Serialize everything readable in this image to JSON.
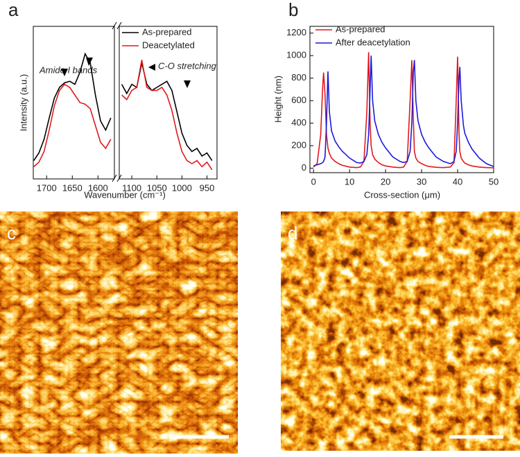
{
  "chart_data": [
    {
      "type": "line",
      "panel_label": "a",
      "x_label": "Wavenumber (cm⁻¹)",
      "y_label": "Intensity (a.u.)",
      "x": [
        1725,
        1715,
        1705,
        1695,
        1685,
        1675,
        1665,
        1655,
        1645,
        1635,
        1625,
        1615,
        1605,
        1595,
        1585,
        1575,
        1120,
        1110,
        1100,
        1090,
        1080,
        1070,
        1060,
        1050,
        1040,
        1030,
        1020,
        1010,
        1000,
        990,
        980,
        970,
        960,
        950,
        940
      ],
      "segments": [
        {
          "xlim": [
            1726,
            1568
          ],
          "xticks": [
            1700,
            1650,
            1600
          ]
        },
        {
          "xlim": [
            1125,
            930
          ],
          "xticks": [
            1100,
            1050,
            1000,
            950
          ]
        }
      ],
      "ylim": [
        0,
        1
      ],
      "series": [
        {
          "name": "As-prepared",
          "color": "#000000",
          "values": [
            0.12,
            0.17,
            0.26,
            0.4,
            0.53,
            0.6,
            0.63,
            0.64,
            0.62,
            0.7,
            0.82,
            0.76,
            0.55,
            0.38,
            0.32,
            0.4,
            0.62,
            0.56,
            0.62,
            0.6,
            0.76,
            0.62,
            0.58,
            0.6,
            0.62,
            0.64,
            0.58,
            0.44,
            0.3,
            0.22,
            0.18,
            0.2,
            0.15,
            0.17,
            0.12
          ]
        },
        {
          "name": "Deacetylated",
          "color": "#e0191b",
          "values": [
            0.08,
            0.11,
            0.18,
            0.32,
            0.48,
            0.58,
            0.62,
            0.6,
            0.55,
            0.5,
            0.49,
            0.46,
            0.35,
            0.24,
            0.2,
            0.26,
            0.55,
            0.52,
            0.58,
            0.6,
            0.78,
            0.6,
            0.58,
            0.58,
            0.6,
            0.55,
            0.45,
            0.3,
            0.18,
            0.12,
            0.1,
            0.12,
            0.08,
            0.11,
            0.06
          ]
        }
      ],
      "annotations": [
        "Amide I bands",
        "C-O stretching"
      ],
      "legend": "upper right"
    },
    {
      "type": "line",
      "panel_label": "b",
      "x_label": "Cross-section (μm)",
      "y_label": "Height (nm)",
      "x": [
        0,
        1,
        2,
        2.5,
        2.8,
        3.2,
        3.6,
        4,
        4.4,
        5,
        6,
        7,
        8,
        10,
        12,
        13,
        14,
        14.8,
        15.3,
        15.7,
        16,
        16.4,
        17,
        18,
        19,
        20,
        22,
        24,
        25,
        26,
        26.8,
        27.3,
        27.7,
        28,
        28.4,
        29,
        30,
        31,
        32,
        34,
        36,
        38,
        39,
        39.6,
        40,
        40.4,
        40.6,
        41,
        41.6,
        42,
        43,
        44,
        46,
        48,
        50
      ],
      "xlim": [
        -1,
        50
      ],
      "xticks": [
        0,
        10,
        20,
        30,
        40,
        50
      ],
      "ylim": [
        -40,
        1260
      ],
      "yticks": [
        0,
        200,
        400,
        600,
        800,
        1000,
        1200
      ],
      "series": [
        {
          "name": "As-prepared",
          "color": "#e0191b",
          "values": [
            10,
            40,
            300,
            700,
            850,
            650,
            300,
            180,
            130,
            90,
            60,
            40,
            25,
            10,
            5,
            10,
            60,
            500,
            1030,
            400,
            200,
            120,
            80,
            50,
            30,
            20,
            10,
            5,
            10,
            60,
            600,
            960,
            450,
            150,
            90,
            60,
            40,
            25,
            15,
            8,
            5,
            10,
            50,
            600,
            990,
            300,
            150,
            90,
            60,
            45,
            30,
            20,
            10,
            5,
            3
          ]
        },
        {
          "name": "After deacetylation",
          "color": "#1a1adc",
          "values": [
            20,
            30,
            40,
            50,
            60,
            100,
            400,
            860,
            500,
            330,
            240,
            190,
            150,
            90,
            50,
            45,
            60,
            120,
            300,
            700,
            1000,
            600,
            420,
            300,
            230,
            180,
            100,
            60,
            50,
            60,
            150,
            400,
            850,
            960,
            600,
            420,
            300,
            230,
            180,
            100,
            60,
            40,
            60,
            150,
            400,
            800,
            900,
            600,
            380,
            310,
            230,
            170,
            90,
            40,
            15
          ]
        }
      ],
      "legend": "upper left"
    }
  ],
  "images": [
    {
      "label": "c"
    },
    {
      "label": "d"
    }
  ]
}
